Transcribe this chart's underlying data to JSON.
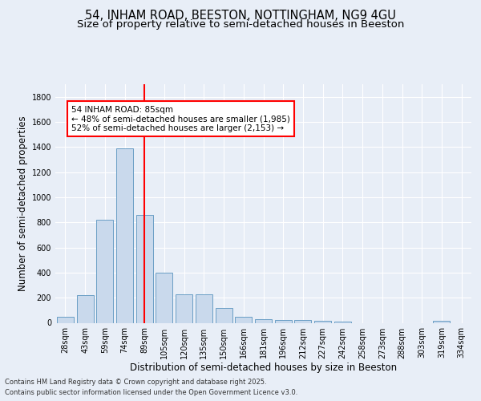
{
  "title_line1": "54, INHAM ROAD, BEESTON, NOTTINGHAM, NG9 4GU",
  "title_line2": "Size of property relative to semi-detached houses in Beeston",
  "xlabel": "Distribution of semi-detached houses by size in Beeston",
  "ylabel": "Number of semi-detached properties",
  "categories": [
    "28sqm",
    "43sqm",
    "59sqm",
    "74sqm",
    "89sqm",
    "105sqm",
    "120sqm",
    "135sqm",
    "150sqm",
    "166sqm",
    "181sqm",
    "196sqm",
    "212sqm",
    "227sqm",
    "242sqm",
    "258sqm",
    "273sqm",
    "288sqm",
    "303sqm",
    "319sqm",
    "334sqm"
  ],
  "values": [
    50,
    220,
    820,
    1390,
    860,
    400,
    225,
    225,
    120,
    50,
    30,
    25,
    20,
    15,
    10,
    0,
    0,
    0,
    0,
    15,
    0
  ],
  "bar_color": "#c9d9ec",
  "bar_edge_color": "#6a9ec5",
  "vline_x_index": 4,
  "vline_color": "red",
  "annotation_text": "54 INHAM ROAD: 85sqm\n← 48% of semi-detached houses are smaller (1,985)\n52% of semi-detached houses are larger (2,153) →",
  "annotation_box_color": "white",
  "annotation_box_edge_color": "red",
  "ylim": [
    0,
    1900
  ],
  "yticks": [
    0,
    200,
    400,
    600,
    800,
    1000,
    1200,
    1400,
    1600,
    1800
  ],
  "background_color": "#e8eef7",
  "plot_bg_color": "#e8eef7",
  "footer_line1": "Contains HM Land Registry data © Crown copyright and database right 2025.",
  "footer_line2": "Contains public sector information licensed under the Open Government Licence v3.0.",
  "grid_color": "white",
  "title_fontsize": 10.5,
  "subtitle_fontsize": 9.5,
  "axis_label_fontsize": 8.5,
  "tick_fontsize": 7,
  "annotation_fontsize": 7.5,
  "footer_fontsize": 6.0
}
